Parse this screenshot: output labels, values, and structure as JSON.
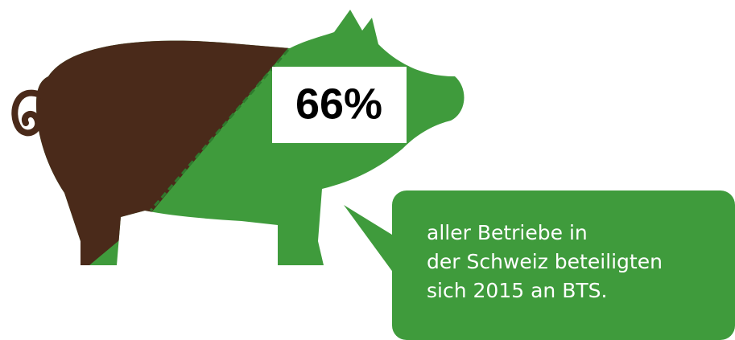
{
  "headline": "66%",
  "caption": [
    "aller Betriebe in",
    "der Schweiz beteiligten",
    "sich 2015 an BTS."
  ]
}
